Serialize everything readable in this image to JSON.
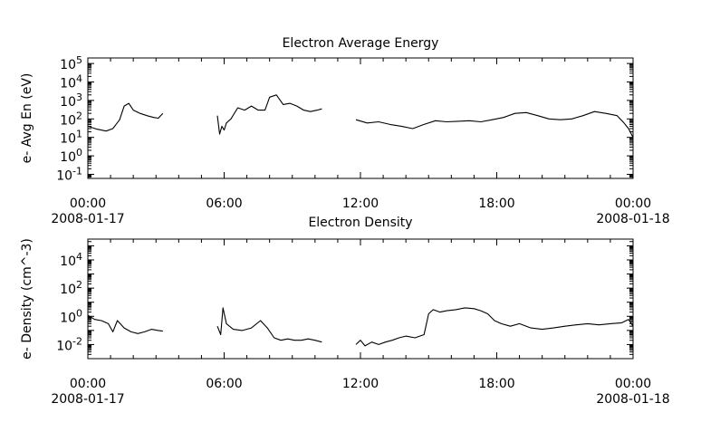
{
  "chart_data": [
    {
      "type": "line",
      "title": "Electron Average Energy",
      "ylabel": "e- Avg En (eV)",
      "yscale": "log",
      "ylim": [
        0.06,
        200000
      ],
      "y_ticks": [
        {
          "value": 0.1,
          "base": "10",
          "exp": "-1"
        },
        {
          "value": 1,
          "base": "10",
          "exp": "0"
        },
        {
          "value": 10,
          "base": "10",
          "exp": "1"
        },
        {
          "value": 100,
          "base": "10",
          "exp": "2"
        },
        {
          "value": 1000,
          "base": "10",
          "exp": "3"
        },
        {
          "value": 10000,
          "base": "10",
          "exp": "4"
        },
        {
          "value": 100000,
          "base": "10",
          "exp": "5"
        }
      ],
      "x_ticks": [
        {
          "hour": 0,
          "label": "00:00",
          "date": "2008-01-17"
        },
        {
          "hour": 6,
          "label": "06:00",
          "date": ""
        },
        {
          "hour": 12,
          "label": "12:00",
          "date": ""
        },
        {
          "hour": 18,
          "label": "18:00",
          "date": ""
        },
        {
          "hour": 24,
          "label": "00:00",
          "date": "2008-01-18"
        }
      ],
      "segments": [
        {
          "x": [
            0.0,
            0.4,
            0.8,
            1.1,
            1.4,
            1.6,
            1.8,
            2.0,
            2.3,
            2.6,
            2.9,
            3.1,
            3.3
          ],
          "y": [
            40,
            28,
            22,
            30,
            90,
            500,
            700,
            300,
            200,
            150,
            120,
            110,
            200
          ]
        },
        {
          "x": [
            5.7,
            5.8,
            5.9,
            6.0,
            6.1,
            6.3,
            6.6,
            6.9,
            7.2,
            7.5,
            7.8,
            8.0,
            8.3,
            8.6,
            8.9,
            9.2,
            9.5,
            9.8,
            10.1,
            10.3
          ],
          "y": [
            150,
            15,
            40,
            25,
            60,
            100,
            400,
            300,
            500,
            300,
            300,
            1500,
            2000,
            600,
            700,
            500,
            300,
            250,
            300,
            350
          ]
        },
        {
          "x": [
            11.8,
            12.3,
            12.8,
            13.3,
            13.8,
            14.3,
            14.8,
            15.3,
            15.8,
            16.3,
            16.8,
            17.3,
            17.8,
            18.3,
            18.8,
            19.3,
            19.8,
            20.3,
            20.8,
            21.3,
            21.8,
            22.3,
            22.8,
            23.3,
            23.6,
            23.8,
            24.0
          ],
          "y": [
            90,
            60,
            70,
            50,
            40,
            30,
            50,
            80,
            70,
            75,
            80,
            70,
            90,
            120,
            200,
            220,
            150,
            100,
            90,
            100,
            150,
            250,
            200,
            150,
            60,
            30,
            10
          ]
        }
      ]
    },
    {
      "type": "line",
      "title": "Electron Density",
      "ylabel": "e- Density (cm^-3)",
      "yscale": "log",
      "ylim": [
        0.001,
        300000
      ],
      "y_ticks": [
        {
          "value": 0.01,
          "base": "10",
          "exp": "-2"
        },
        {
          "value": 1,
          "base": "10",
          "exp": "0"
        },
        {
          "value": 100,
          "base": "10",
          "exp": "2"
        },
        {
          "value": 10000,
          "base": "10",
          "exp": "4"
        }
      ],
      "x_ticks": [
        {
          "hour": 0,
          "label": "00:00",
          "date": "2008-01-17"
        },
        {
          "hour": 6,
          "label": "06:00",
          "date": ""
        },
        {
          "hour": 12,
          "label": "12:00",
          "date": ""
        },
        {
          "hour": 18,
          "label": "18:00",
          "date": ""
        },
        {
          "hour": 24,
          "label": "00:00",
          "date": "2008-01-18"
        }
      ],
      "segments": [
        {
          "x": [
            0.0,
            0.3,
            0.6,
            0.9,
            1.1,
            1.3,
            1.6,
            1.9,
            2.2,
            2.5,
            2.8,
            3.1,
            3.3
          ],
          "y": [
            1.2,
            0.6,
            0.5,
            0.3,
            0.08,
            0.5,
            0.15,
            0.08,
            0.06,
            0.08,
            0.12,
            0.1,
            0.09
          ]
        },
        {
          "x": [
            5.7,
            5.85,
            5.95,
            6.1,
            6.4,
            6.8,
            7.2,
            7.6,
            7.9,
            8.2,
            8.5,
            8.8,
            9.1,
            9.4,
            9.7,
            10.0,
            10.3
          ],
          "y": [
            0.2,
            0.05,
            4,
            0.3,
            0.12,
            0.1,
            0.15,
            0.5,
            0.15,
            0.03,
            0.02,
            0.025,
            0.02,
            0.02,
            0.025,
            0.02,
            0.015
          ]
        },
        {
          "x": [
            11.8,
            12.0,
            12.2,
            12.5,
            12.8,
            13.1,
            13.4,
            13.7,
            14.0,
            14.4,
            14.8,
            15.0,
            15.2,
            15.5,
            15.8,
            16.2,
            16.6,
            17.0,
            17.3,
            17.6,
            17.9,
            18.2,
            18.6,
            19.0,
            19.5,
            20.0,
            20.5,
            21.0,
            21.5,
            22.0,
            22.5,
            23.0,
            23.5,
            23.8,
            24.0
          ],
          "y": [
            0.01,
            0.02,
            0.008,
            0.015,
            0.01,
            0.015,
            0.02,
            0.03,
            0.04,
            0.03,
            0.05,
            1.5,
            3,
            2,
            2.5,
            3,
            4,
            3.5,
            2.5,
            1.5,
            0.5,
            0.3,
            0.2,
            0.3,
            0.15,
            0.12,
            0.15,
            0.2,
            0.25,
            0.3,
            0.25,
            0.3,
            0.35,
            0.6,
            0.2
          ]
        }
      ]
    }
  ]
}
